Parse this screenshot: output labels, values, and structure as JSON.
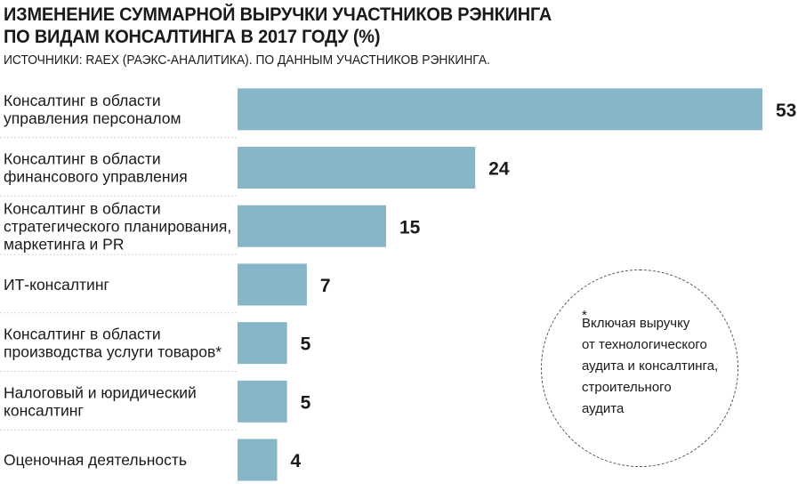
{
  "header": {
    "title": "ИЗМЕНЕНИЕ СУММАРНОЙ ВЫРУЧКИ УЧАСТНИКОВ РЭНКИНГА\nПО ВИДАМ КОНСАЛТИНГА В 2017 ГОДУ (%)",
    "source": "ИСТОЧНИКИ: RAEX (РАЭКС-АНАЛИТИКА). ПО ДАННЫМ УЧАСТНИКОВ РЭНКИНГА."
  },
  "note": {
    "star": "*",
    "text": "Включая выручку\nот технологического\nаудита и консалтинга,\nстроительного\nаудита"
  },
  "chart_data": {
    "type": "bar",
    "orientation": "horizontal",
    "title": "ИЗМЕНЕНИЕ СУММАРНОЙ ВЫРУЧКИ УЧАСТНИКОВ РЭНКИНГА ПО ВИДАМ КОНСАЛТИНГА В 2017 ГОДУ (%)",
    "categories": [
      [
        "Консалтинг в области",
        "управления персоналом"
      ],
      [
        "Консалтинг в области",
        "финансового управления"
      ],
      [
        "Консалтинг в области",
        "стратегического планирования,",
        "маркетинга и PR"
      ],
      [
        "ИТ-консалтинг"
      ],
      [
        "Консалтинг в области",
        "производства услуги товаров*"
      ],
      [
        "Налоговый и юридический",
        "консалтинг"
      ],
      [
        "Оценочная деятельность"
      ]
    ],
    "values": [
      53,
      24,
      15,
      7,
      5,
      5,
      4
    ],
    "value_labels": [
      "53",
      "24",
      "15",
      "7",
      "5",
      "5",
      "4"
    ],
    "xlim": [
      0,
      53
    ],
    "grid": false,
    "bar_color": "#87b6c8"
  }
}
